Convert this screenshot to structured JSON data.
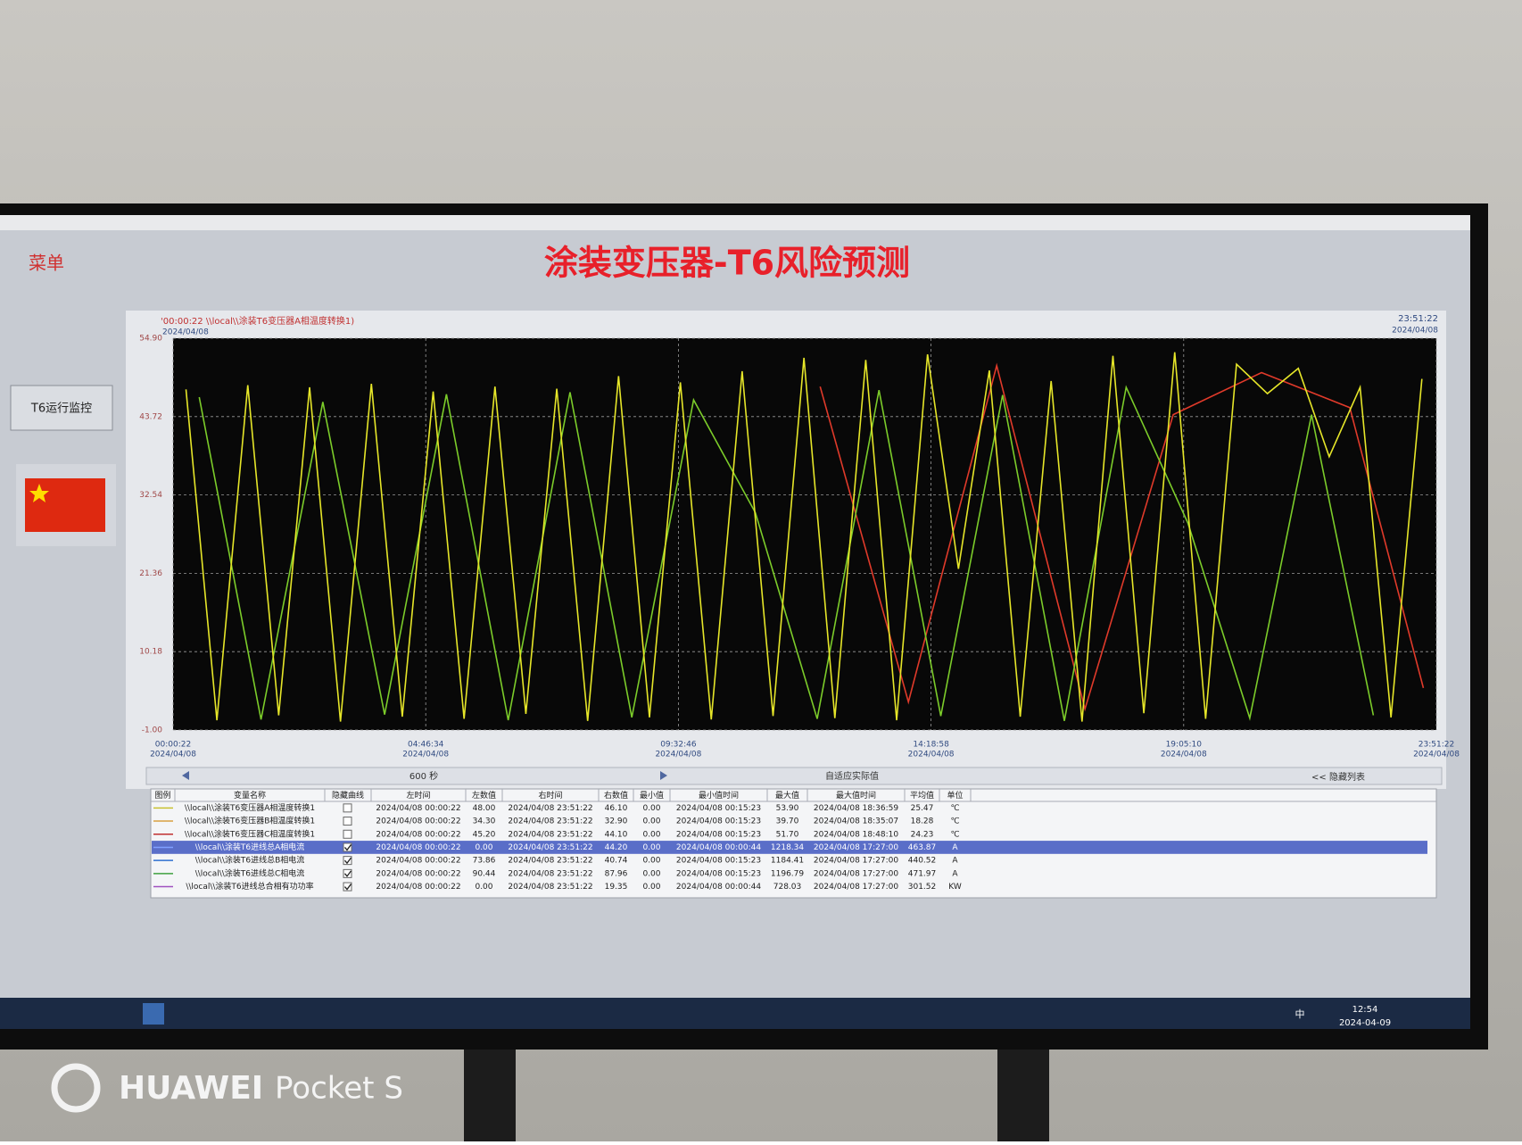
{
  "menu_label": "菜单",
  "nav_button": "T6运行监控",
  "page_title": "涂装变压器-T6风险预测",
  "chart_data": {
    "type": "line",
    "header_left": "'00:00:22 \\\\local\\\\涂装T6变压器A相温度转换1)",
    "header_left_date": "2024/04/08",
    "header_right": "23:51:22",
    "header_right_date": "2024/04/08",
    "x_date": "2024/04/08",
    "xlim": [
      22,
      85882
    ],
    "xticks": [
      {
        "value": 22,
        "label": "00:00:22"
      },
      {
        "value": 17194,
        "label": "04:46:34"
      },
      {
        "value": 34366,
        "label": "09:32:46"
      },
      {
        "value": 51538,
        "label": "14:18:58"
      },
      {
        "value": 68710,
        "label": "19:05:10"
      },
      {
        "value": 85882,
        "label": "23:51:22"
      }
    ],
    "ylim": [
      -1,
      54.9
    ],
    "yticks": [
      {
        "value": -1,
        "label": "-1.00"
      },
      10.18,
      21.36,
      32.54,
      43.72,
      {
        "value": 54.9,
        "label": "54.90"
      }
    ],
    "grid": true,
    "series": [
      {
        "color": "#e03a2a",
        "x": [
          44000,
          50000,
          56000,
          62000,
          68000,
          74000,
          80000,
          85000
        ],
        "values": [
          48.0,
          3.0,
          51.0,
          2.0,
          44.0,
          50.0,
          45.0,
          5.0
        ]
      },
      {
        "color": "#7ccc2a",
        "x": [
          1800,
          6000,
          10200,
          14400,
          18600,
          22800,
          27000,
          31200,
          35400,
          39600,
          43800,
          48000,
          52200,
          56400,
          60600,
          64800,
          69000,
          73200,
          77400,
          81600
        ],
        "values": [
          46.5,
          0.5,
          45.8,
          1.2,
          46.9,
          0.4,
          47.2,
          0.8,
          46.1,
          30.0,
          0.6,
          47.5,
          1.0,
          46.8,
          0.3,
          47.9,
          28.5,
          0.7,
          44.0,
          1.1
        ]
      },
      {
        "color": "#e6e629",
        "x": [
          900,
          3000,
          5100,
          7200,
          9300,
          11400,
          13500,
          15600,
          17700,
          19800,
          21900,
          24000,
          26100,
          28200,
          30300,
          32400,
          34500,
          36600,
          38700,
          40800,
          42900,
          45000,
          47100,
          49200,
          51300,
          53400,
          55500,
          57600,
          59700,
          61800,
          63900,
          66000,
          68100,
          70200,
          72300,
          74400,
          76500,
          78600,
          80700,
          82800,
          84900
        ],
        "values": [
          47.6,
          0.4,
          48.2,
          1.1,
          47.9,
          0.2,
          48.4,
          0.9,
          47.3,
          0.6,
          48.0,
          1.3,
          47.7,
          0.3,
          49.5,
          0.8,
          48.6,
          0.5,
          50.2,
          1.0,
          52.1,
          0.7,
          51.8,
          0.4,
          52.6,
          22.0,
          50.3,
          0.9,
          48.8,
          0.2,
          52.4,
          1.4,
          52.9,
          0.6,
          51.2,
          47.0,
          50.6,
          38.0,
          47.9,
          0.8,
          49.1
        ]
      }
    ]
  },
  "toolbar": {
    "span": "600 秒",
    "mode": "自适应实际值",
    "hide_list": "<< 隐藏列表"
  },
  "table": {
    "columns": [
      "图例",
      "变量名称",
      "隐藏曲线",
      "左时间",
      "左数值",
      "右时间",
      "右数值",
      "最小值",
      "最小值时间",
      "最大值",
      "最大值时间",
      "平均值",
      "单位"
    ],
    "selected_row": 3,
    "rows": [
      {
        "legend_color": "#c8c030",
        "hidden": false,
        "cells": [
          "\\\\local\\\\涂装T6变压器A相温度转换1",
          "2024/04/08 00:00:22",
          "48.00",
          "2024/04/08 23:51:22",
          "46.10",
          "0.00",
          "2024/04/08 00:15:23",
          "53.90",
          "2024/04/08 18:36:59",
          "25.47",
          "℃"
        ]
      },
      {
        "legend_color": "#d8a040",
        "hidden": false,
        "cells": [
          "\\\\local\\\\涂装T6变压器B相温度转换1",
          "2024/04/08 00:00:22",
          "34.30",
          "2024/04/08 23:51:22",
          "32.90",
          "0.00",
          "2024/04/08 00:15:23",
          "39.70",
          "2024/04/08 18:35:07",
          "18.28",
          "℃"
        ]
      },
      {
        "legend_color": "#c03030",
        "hidden": false,
        "cells": [
          "\\\\local\\\\涂装T6变压器C相温度转换1",
          "2024/04/08 00:00:22",
          "45.20",
          "2024/04/08 23:51:22",
          "44.10",
          "0.00",
          "2024/04/08 00:15:23",
          "51.70",
          "2024/04/08 18:48:10",
          "24.23",
          "℃"
        ]
      },
      {
        "legend_color": "#80a0ff",
        "hidden": true,
        "cells": [
          "\\\\local\\\\涂装T6进线总A相电流",
          "2024/04/08 00:00:22",
          "0.00",
          "2024/04/08 23:51:22",
          "44.20",
          "0.00",
          "2024/04/08 00:00:44",
          "1218.34",
          "2024/04/08 17:27:00",
          "463.87",
          "A"
        ]
      },
      {
        "legend_color": "#3070d0",
        "hidden": true,
        "cells": [
          "\\\\local\\\\涂装T6进线总B相电流",
          "2024/04/08 00:00:22",
          "73.86",
          "2024/04/08 23:51:22",
          "40.74",
          "0.00",
          "2024/04/08 00:15:23",
          "1184.41",
          "2024/04/08 17:27:00",
          "440.52",
          "A"
        ]
      },
      {
        "legend_color": "#40a040",
        "hidden": true,
        "cells": [
          "\\\\local\\\\涂装T6进线总C相电流",
          "2024/04/08 00:00:22",
          "90.44",
          "2024/04/08 23:51:22",
          "87.96",
          "0.00",
          "2024/04/08 00:15:23",
          "1196.79",
          "2024/04/08 17:27:00",
          "471.97",
          "A"
        ]
      },
      {
        "legend_color": "#a050c0",
        "hidden": true,
        "cells": [
          "\\\\local\\\\涂装T6进线总合相有功功率",
          "2024/04/08 00:00:22",
          "0.00",
          "2024/04/08 23:51:22",
          "19.35",
          "0.00",
          "2024/04/08 00:00:44",
          "728.03",
          "2024/04/08 17:27:00",
          "301.52",
          "KW"
        ]
      }
    ]
  },
  "taskbar": {
    "ime": "中",
    "time": "12:54",
    "date": "2024-04-09"
  },
  "watermark": {
    "brand": "HUAWEI",
    "model": "Pocket S"
  }
}
